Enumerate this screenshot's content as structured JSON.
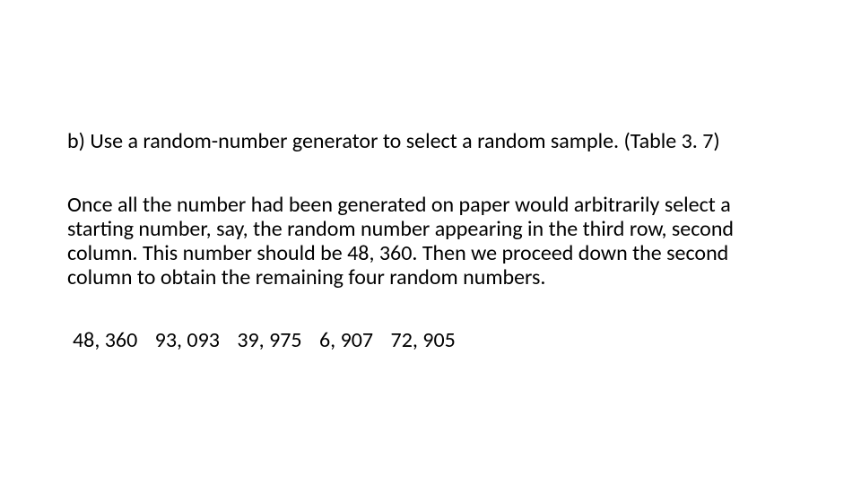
{
  "background_color": "#ffffff",
  "text_color": "#000000",
  "font_family": "Calibri, 'Segoe UI', Arial, sans-serif",
  "font_size_pt": 18,
  "heading": "b) Use a random-number generator to select a random sample. (Table 3. 7)",
  "body": "Once all the number had been generated on paper would arbitrarily select a starting number, say, the random number appearing in the third row, second column. This number should be 48, 360. Then we proceed down the second column to obtain the remaining four random numbers.",
  "numbers": [
    "48, 360",
    "93, 093",
    "39, 975",
    "6, 907",
    "72, 905"
  ]
}
